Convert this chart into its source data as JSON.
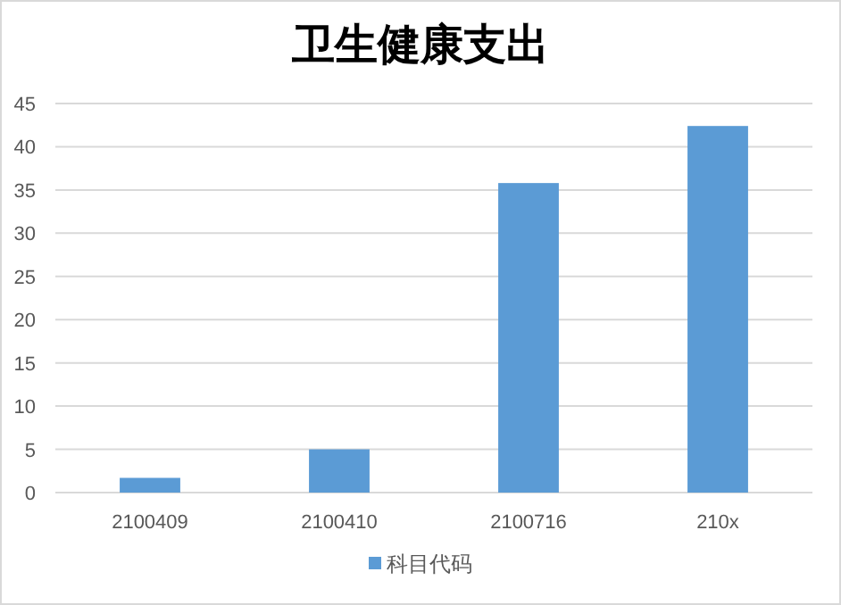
{
  "chart_data": {
    "type": "bar",
    "title": "卫生健康支出",
    "categories": [
      "2100409",
      "2100410",
      "2100716",
      "210x"
    ],
    "series": [
      {
        "name": "科目代码",
        "color": "#5b9bd5",
        "values": [
          1.7,
          5.0,
          35.8,
          42.4
        ]
      }
    ],
    "ylim": [
      0,
      45
    ],
    "yticks": [
      0,
      5,
      10,
      15,
      20,
      25,
      30,
      35,
      40,
      45
    ],
    "grid": "y",
    "legend": "bottom"
  }
}
